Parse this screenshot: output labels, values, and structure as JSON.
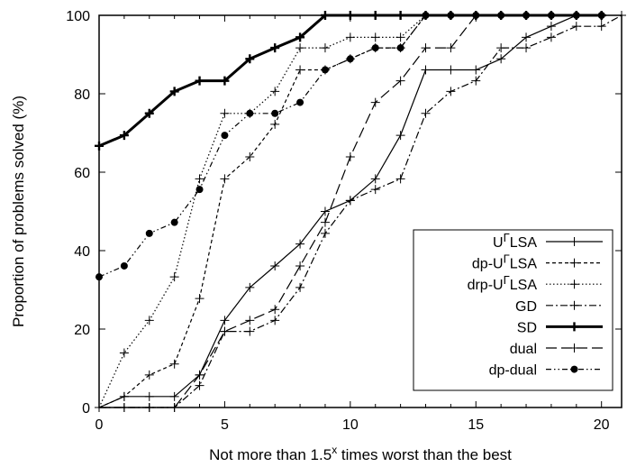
{
  "chart_data": {
    "type": "line",
    "xlabel": "Not more than 1.5",
    "xlabel_sup": "x",
    "xlabel_rest": " times worst than the best",
    "ylabel": "Proportion of problems solved (%)",
    "xlim": [
      0,
      20.8
    ],
    "ylim": [
      0,
      100
    ],
    "xticks": [
      0,
      5,
      10,
      15,
      20
    ],
    "yticks": [
      0,
      20,
      40,
      60,
      80,
      100
    ],
    "grid": false,
    "legend_position": "bottom-right",
    "series": [
      {
        "name": "UΓLSA",
        "name_parts": [
          "U",
          "Γ",
          "LSA"
        ],
        "style": "solid",
        "marker": "plus",
        "width": 1.2,
        "x": [
          0,
          1,
          2,
          3,
          4,
          5,
          6,
          7,
          8,
          9,
          10,
          11,
          12,
          13,
          14,
          15,
          16,
          17,
          18,
          19,
          20
        ],
        "y": [
          0,
          2.8,
          2.8,
          2.8,
          8.3,
          22.2,
          30.6,
          36.1,
          41.7,
          50,
          52.8,
          58.3,
          69.4,
          86.1,
          86.1,
          86.1,
          88.9,
          94.4,
          97.2,
          100,
          100
        ]
      },
      {
        "name": "dp-UΓLSA",
        "name_parts": [
          "dp-U",
          "Γ",
          "LSA"
        ],
        "style": "dashed",
        "marker": "plus",
        "width": 1.2,
        "x": [
          0,
          1,
          2,
          3,
          4,
          5,
          6,
          7,
          8,
          9,
          10,
          11,
          12,
          13,
          14,
          15,
          16,
          17,
          18,
          19,
          20
        ],
        "y": [
          0,
          2.8,
          8.3,
          11.1,
          27.8,
          58.3,
          63.9,
          72.2,
          86.1,
          86.1,
          88.9,
          91.7,
          91.7,
          100,
          100,
          100,
          100,
          100,
          100,
          100,
          100
        ]
      },
      {
        "name": "drp-UΓLSA",
        "name_parts": [
          "drp-U",
          "Γ",
          "LSA"
        ],
        "style": "dotted",
        "marker": "plus",
        "width": 1.2,
        "x": [
          0,
          1,
          2,
          3,
          4,
          5,
          6,
          7,
          8,
          9,
          10,
          11,
          12,
          13,
          14,
          15,
          16,
          17,
          18,
          19,
          20
        ],
        "y": [
          0,
          13.9,
          22.2,
          33.3,
          58.3,
          75,
          75,
          80.6,
          91.7,
          91.7,
          94.4,
          94.4,
          94.4,
          100,
          100,
          100,
          100,
          100,
          100,
          100,
          100
        ]
      },
      {
        "name": "GD",
        "name_parts": [
          "GD",
          "",
          ""
        ],
        "style": "dashdot",
        "marker": "plus",
        "width": 1.2,
        "x": [
          0,
          1,
          2,
          3,
          4,
          5,
          6,
          7,
          8,
          9,
          10,
          11,
          12,
          13,
          14,
          15,
          16,
          17,
          18,
          19,
          20,
          20.8
        ],
        "y": [
          0,
          0,
          0,
          0,
          5.6,
          19.4,
          19.4,
          22.2,
          30.6,
          44.4,
          52.8,
          55.6,
          58.3,
          75,
          80.6,
          83.3,
          91.7,
          91.7,
          94.4,
          97.2,
          97.2,
          100
        ]
      },
      {
        "name": "SD",
        "name_parts": [
          "SD",
          "",
          ""
        ],
        "style": "solid",
        "marker": "plus",
        "width": 3,
        "x": [
          0,
          1,
          2,
          3,
          4,
          5,
          6,
          7,
          8,
          9,
          10,
          11,
          12,
          13,
          14,
          15,
          16,
          17,
          18,
          19,
          20
        ],
        "y": [
          66.7,
          69.4,
          75,
          80.6,
          83.3,
          83.3,
          88.9,
          91.7,
          94.4,
          100,
          100,
          100,
          100,
          100,
          100,
          100,
          100,
          100,
          100,
          100,
          100
        ]
      },
      {
        "name": "dual",
        "name_parts": [
          "dual",
          "",
          ""
        ],
        "style": "longdash",
        "marker": "plus",
        "width": 1.2,
        "x": [
          0,
          1,
          2,
          3,
          4,
          5,
          6,
          7,
          8,
          9,
          10,
          11,
          12,
          13,
          14,
          15,
          16,
          17,
          18,
          19,
          20
        ],
        "y": [
          0,
          0,
          0,
          0,
          8.3,
          19.4,
          22.2,
          25,
          36.1,
          47.2,
          63.9,
          77.8,
          83.3,
          91.7,
          91.7,
          100,
          100,
          100,
          100,
          100,
          100
        ]
      },
      {
        "name": "dp-dual",
        "name_parts": [
          "dp-dual",
          "",
          ""
        ],
        "style": "dashdotdot",
        "marker": "dot",
        "width": 1.2,
        "x": [
          0,
          1,
          2,
          3,
          4,
          5,
          6,
          7,
          8,
          9,
          10,
          11,
          12,
          13,
          14,
          15,
          16,
          17,
          18,
          19,
          20
        ],
        "y": [
          33.3,
          36.1,
          44.4,
          47.2,
          55.6,
          69.4,
          75,
          75,
          77.8,
          86.1,
          88.9,
          91.7,
          91.7,
          100,
          100,
          100,
          100,
          100,
          100,
          100,
          100
        ]
      }
    ]
  }
}
